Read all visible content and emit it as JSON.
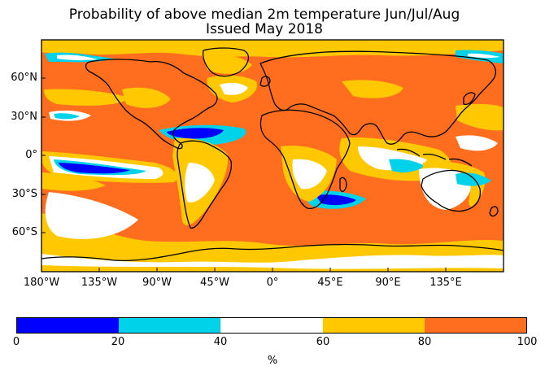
{
  "title": "Probability of above median 2m temperature Jun/Jul/Aug",
  "subtitle": "Issued May 2018",
  "map": {
    "projection": "equirectangular",
    "background_category_color": "#f07020",
    "x_ticks": [
      "180°W",
      "135°W",
      "90°W",
      "45°W",
      "0°",
      "45°E",
      "90°E",
      "135°E"
    ],
    "y_ticks": [
      "60°N",
      "30°N",
      "0°",
      "30°S",
      "60°S"
    ]
  },
  "colorbar": {
    "label": "%",
    "ticks": [
      "0",
      "20",
      "40",
      "60",
      "80",
      "100"
    ],
    "colors": [
      "#0000ff",
      "#00d2ea",
      "#ffffff",
      "#ffc800",
      "#ff6e1e"
    ]
  }
}
